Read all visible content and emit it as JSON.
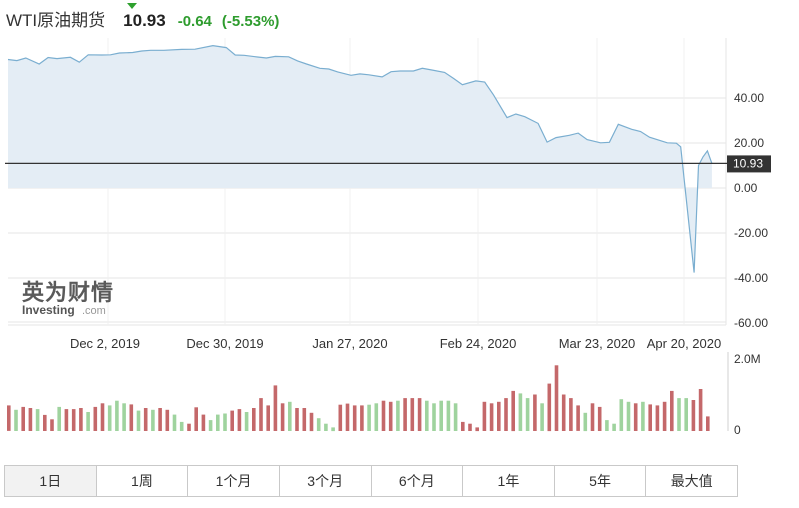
{
  "header": {
    "instrument": "WTI原油期货",
    "price": "10.93",
    "change": "-0.64",
    "change_pct": "(-5.53%)"
  },
  "chart_data": {
    "type": "area",
    "x_ticks": [
      "Dec 2, 2019",
      "Dec 30, 2019",
      "Jan 27, 2020",
      "Feb 24, 2020",
      "Mar 23, 2020",
      "Apr 20, 2020"
    ],
    "y_ticks": [
      "40.00",
      "20.00",
      "0.00",
      "-20.00",
      "-40.00",
      "-60.00"
    ],
    "ylim": [
      -60,
      60
    ],
    "current_label": "10.93",
    "price_series": {
      "start_date": "2019-11-18",
      "dates": [
        "2019-11-18",
        "2019-11-20",
        "2019-11-22",
        "2019-11-25",
        "2019-11-27",
        "2019-11-29",
        "2019-12-02",
        "2019-12-04",
        "2019-12-06",
        "2019-12-09",
        "2019-12-11",
        "2019-12-13",
        "2019-12-16",
        "2019-12-18",
        "2019-12-20",
        "2019-12-23",
        "2019-12-27",
        "2019-12-30",
        "2020-01-03",
        "2020-01-06",
        "2020-01-08",
        "2020-01-10",
        "2020-01-13",
        "2020-01-15",
        "2020-01-17",
        "2020-01-20",
        "2020-01-22",
        "2020-01-24",
        "2020-01-27",
        "2020-01-29",
        "2020-01-31",
        "2020-02-03",
        "2020-02-05",
        "2020-02-07",
        "2020-02-10",
        "2020-02-12",
        "2020-02-14",
        "2020-02-17",
        "2020-02-19",
        "2020-02-21",
        "2020-02-24",
        "2020-02-26",
        "2020-02-28",
        "2020-03-02",
        "2020-03-04",
        "2020-03-06",
        "2020-03-09",
        "2020-03-11",
        "2020-03-13",
        "2020-03-16",
        "2020-03-18",
        "2020-03-20",
        "2020-03-23",
        "2020-03-25",
        "2020-03-27",
        "2020-03-30",
        "2020-04-01",
        "2020-04-03",
        "2020-04-06",
        "2020-04-08",
        "2020-04-10",
        "2020-04-14",
        "2020-04-16",
        "2020-04-17",
        "2020-04-20",
        "2020-04-21",
        "2020-04-22",
        "2020-04-23",
        "2020-04-24"
      ],
      "values": [
        57.1,
        56.6,
        57.8,
        55.1,
        58.0,
        57.5,
        58.1,
        55.9,
        59.2,
        59.1,
        59.2,
        60.0,
        60.2,
        60.9,
        61.2,
        61.2,
        61.6,
        61.7,
        63.3,
        62.4,
        59.1,
        59.0,
        58.2,
        57.8,
        58.5,
        58.3,
        56.5,
        55.1,
        53.2,
        52.9,
        51.6,
        50.1,
        50.7,
        50.3,
        49.4,
        51.7,
        52.0,
        52.0,
        53.2,
        52.5,
        51.4,
        48.7,
        45.9,
        47.6,
        47.1,
        41.3,
        31.3,
        32.9,
        31.7,
        28.7,
        20.4,
        22.4,
        23.4,
        24.4,
        21.5,
        20.1,
        20.3,
        28.3,
        26.1,
        25.1,
        22.6,
        20.1,
        19.9,
        18.3,
        -37.6,
        10.0,
        13.8,
        16.5,
        10.93
      ]
    },
    "volume": {
      "unit_ticks": [
        "2.0M",
        "0"
      ],
      "ymax_millions": 2.0,
      "bars": [
        {
          "v": 0.7,
          "up": false
        },
        {
          "v": 0.58,
          "up": true
        },
        {
          "v": 0.66,
          "up": false
        },
        {
          "v": 0.63,
          "up": false
        },
        {
          "v": 0.6,
          "up": true
        },
        {
          "v": 0.44,
          "up": false
        },
        {
          "v": 0.32,
          "up": false
        },
        {
          "v": 0.66,
          "up": true
        },
        {
          "v": 0.6,
          "up": false
        },
        {
          "v": 0.6,
          "up": false
        },
        {
          "v": 0.63,
          "up": false
        },
        {
          "v": 0.52,
          "up": true
        },
        {
          "v": 0.66,
          "up": false
        },
        {
          "v": 0.76,
          "up": false
        },
        {
          "v": 0.7,
          "up": true
        },
        {
          "v": 0.83,
          "up": true
        },
        {
          "v": 0.76,
          "up": true
        },
        {
          "v": 0.73,
          "up": false
        },
        {
          "v": 0.56,
          "up": true
        },
        {
          "v": 0.63,
          "up": false
        },
        {
          "v": 0.58,
          "up": true
        },
        {
          "v": 0.63,
          "up": false
        },
        {
          "v": 0.58,
          "up": false
        },
        {
          "v": 0.45,
          "up": true
        },
        {
          "v": 0.25,
          "up": true
        },
        {
          "v": 0.2,
          "up": false
        },
        {
          "v": 0.65,
          "up": false
        },
        {
          "v": 0.45,
          "up": false
        },
        {
          "v": 0.3,
          "up": true
        },
        {
          "v": 0.45,
          "up": true
        },
        {
          "v": 0.48,
          "up": true
        },
        {
          "v": 0.56,
          "up": false
        },
        {
          "v": 0.6,
          "up": false
        },
        {
          "v": 0.52,
          "up": true
        },
        {
          "v": 0.63,
          "up": false
        },
        {
          "v": 0.9,
          "up": false
        },
        {
          "v": 0.7,
          "up": false
        },
        {
          "v": 1.25,
          "up": false
        },
        {
          "v": 0.76,
          "up": false
        },
        {
          "v": 0.8,
          "up": true
        },
        {
          "v": 0.63,
          "up": false
        },
        {
          "v": 0.63,
          "up": false
        },
        {
          "v": 0.5,
          "up": false
        },
        {
          "v": 0.35,
          "up": true
        },
        {
          "v": 0.2,
          "up": true
        },
        {
          "v": 0.1,
          "up": true
        },
        {
          "v": 0.72,
          "up": false
        },
        {
          "v": 0.75,
          "up": false
        },
        {
          "v": 0.7,
          "up": false
        },
        {
          "v": 0.7,
          "up": false
        },
        {
          "v": 0.72,
          "up": true
        },
        {
          "v": 0.76,
          "up": true
        },
        {
          "v": 0.83,
          "up": false
        },
        {
          "v": 0.8,
          "up": false
        },
        {
          "v": 0.83,
          "up": true
        },
        {
          "v": 0.9,
          "up": false
        },
        {
          "v": 0.9,
          "up": false
        },
        {
          "v": 0.9,
          "up": false
        },
        {
          "v": 0.83,
          "up": true
        },
        {
          "v": 0.76,
          "up": true
        },
        {
          "v": 0.83,
          "up": true
        },
        {
          "v": 0.83,
          "up": true
        },
        {
          "v": 0.76,
          "up": true
        },
        {
          "v": 0.25,
          "up": false
        },
        {
          "v": 0.2,
          "up": false
        },
        {
          "v": 0.1,
          "up": false
        },
        {
          "v": 0.8,
          "up": false
        },
        {
          "v": 0.76,
          "up": false
        },
        {
          "v": 0.8,
          "up": false
        },
        {
          "v": 0.9,
          "up": false
        },
        {
          "v": 1.1,
          "up": false
        },
        {
          "v": 1.03,
          "up": true
        },
        {
          "v": 0.9,
          "up": true
        },
        {
          "v": 1.0,
          "up": false
        },
        {
          "v": 0.76,
          "up": true
        },
        {
          "v": 1.3,
          "up": false
        },
        {
          "v": 1.8,
          "up": false
        },
        {
          "v": 1.0,
          "up": false
        },
        {
          "v": 0.9,
          "up": false
        },
        {
          "v": 0.7,
          "up": false
        },
        {
          "v": 0.5,
          "up": true
        },
        {
          "v": 0.76,
          "up": false
        },
        {
          "v": 0.66,
          "up": false
        },
        {
          "v": 0.3,
          "up": true
        },
        {
          "v": 0.2,
          "up": true
        },
        {
          "v": 0.87,
          "up": true
        },
        {
          "v": 0.8,
          "up": true
        },
        {
          "v": 0.76,
          "up": false
        },
        {
          "v": 0.8,
          "up": true
        },
        {
          "v": 0.73,
          "up": false
        },
        {
          "v": 0.7,
          "up": false
        },
        {
          "v": 0.8,
          "up": false
        },
        {
          "v": 1.1,
          "up": false
        },
        {
          "v": 0.9,
          "up": true
        },
        {
          "v": 0.9,
          "up": true
        },
        {
          "v": 0.85,
          "up": false
        },
        {
          "v": 1.15,
          "up": false
        },
        {
          "v": 0.4,
          "up": false
        }
      ]
    },
    "colors": {
      "line": "#7aaed0",
      "fill": "#e4edf5",
      "price_line": "#333333",
      "price_label_bg": "#333333",
      "up": "#9fd39e",
      "down": "#c4686a",
      "grid": "#e6e6e6"
    }
  },
  "logo": {
    "cn": "英为财情",
    "en_a": "Investing",
    "en_b": ".com"
  },
  "tabs": [
    "1日",
    "1周",
    "1个月",
    "3个月",
    "6个月",
    "1年",
    "5年",
    "最大值"
  ],
  "active_tab": 0
}
